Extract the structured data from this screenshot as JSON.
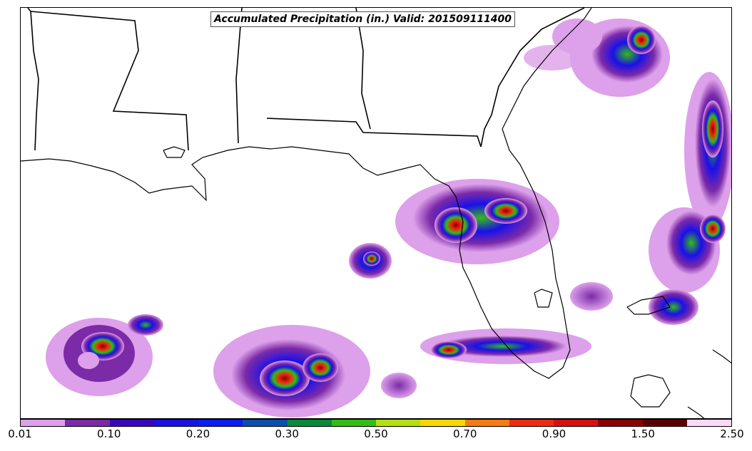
{
  "title": "Accumulated Precipitation (in.) Valid: 201509111400",
  "colorbar": {
    "colors": [
      "#dda0ea",
      "#7b2aa8",
      "#3b05c0",
      "#1a10e8",
      "#0a1ef5",
      "#0a4fb0",
      "#0a8a3c",
      "#32be14",
      "#b4e010",
      "#f8d800",
      "#f87a10",
      "#f02a10",
      "#d81010",
      "#8a0000",
      "#5a0000",
      "#ffd8f6"
    ],
    "tick_labels": [
      "0.01",
      "0.10",
      "0.20",
      "0.30",
      "0.50",
      "0.70",
      "0.90",
      "1.50",
      "2.50"
    ]
  }
}
